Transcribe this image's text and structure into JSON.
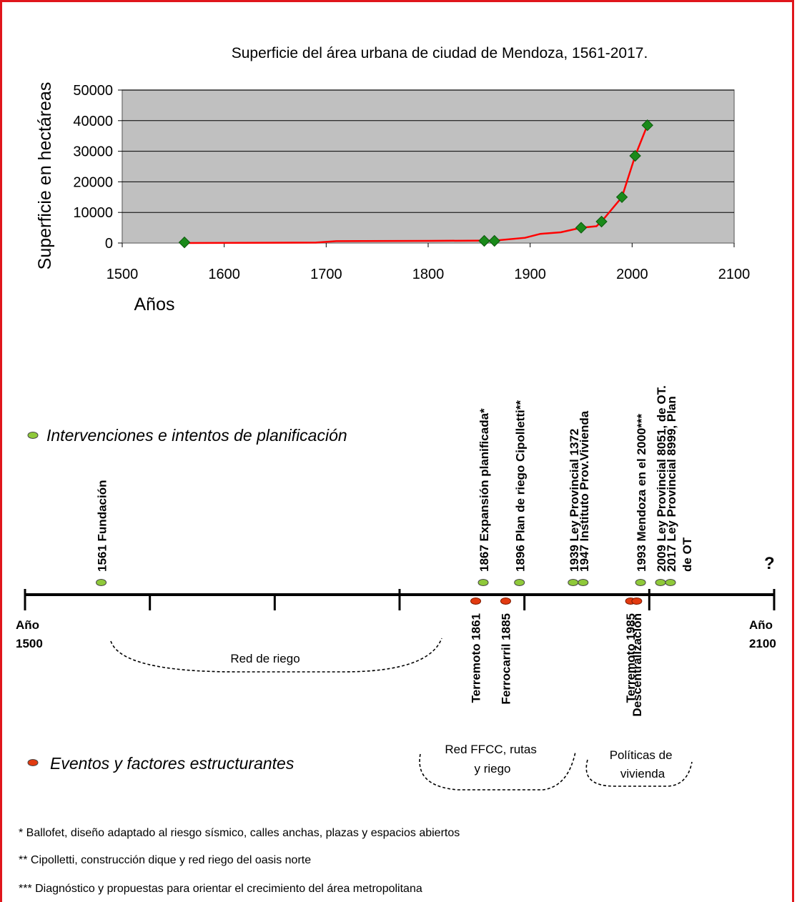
{
  "colors": {
    "frame": "#e0161c",
    "plot_bg": "#c0c0c0",
    "line": "#ff0000",
    "marker": "#1a8a1a",
    "intervention_dot": "#8fc93a",
    "event_dot": "#e23a10"
  },
  "chart_data": {
    "type": "line",
    "title": "Superficie del área urbana de ciudad de Mendoza, 1561-2017.",
    "xlabel": "Años",
    "ylabel": "Superficie en hectáreas",
    "xlim": [
      1500,
      2100
    ],
    "ylim": [
      0,
      50000
    ],
    "x_ticks": [
      "1500",
      "1600",
      "1700",
      "1800",
      "1900",
      "2000",
      "2100"
    ],
    "y_ticks": [
      "0",
      "10000",
      "20000",
      "30000",
      "40000",
      "50000"
    ],
    "grid": true,
    "series": [
      {
        "line_points": [
          [
            1561,
            0
          ],
          [
            1690,
            150
          ],
          [
            1710,
            600
          ],
          [
            1800,
            700
          ],
          [
            1855,
            800
          ],
          [
            1865,
            800
          ],
          [
            1895,
            1700
          ],
          [
            1910,
            3000
          ],
          [
            1930,
            3500
          ],
          [
            1950,
            5000
          ],
          [
            1965,
            5500
          ],
          [
            1970,
            7000
          ],
          [
            1990,
            15000
          ],
          [
            2003,
            28500
          ],
          [
            2015,
            38500
          ]
        ],
        "markers": [
          [
            1561,
            200
          ],
          [
            1855,
            700
          ],
          [
            1865,
            700
          ],
          [
            1950,
            5000
          ],
          [
            1970,
            7000
          ],
          [
            1990,
            15000
          ],
          [
            2003,
            28500
          ],
          [
            2015,
            38500
          ]
        ]
      }
    ]
  },
  "timeline": {
    "start_year": 1500,
    "end_year": 2100,
    "start_label": [
      "Año",
      "1500"
    ],
    "end_label": [
      "Año",
      "2100"
    ],
    "question_mark": "?",
    "interventions": [
      {
        "year": 1561,
        "label": "1561 Fundación"
      },
      {
        "year": 1867,
        "label": "1867 Expansión planificada*"
      },
      {
        "year": 1896,
        "label": "1896 Plan de riego  Cipolletti**"
      },
      {
        "year": 1939,
        "label": "1939 Ley Provincial 1372"
      },
      {
        "year": 1947,
        "label": "1947  Instituto Prov.Vivienda"
      },
      {
        "year": 1993,
        "label": "1993  Mendoza en el 2000***"
      },
      {
        "year": 2009,
        "label": "2009 Ley Provincial 8051, de OT."
      },
      {
        "year": 2017,
        "label": "2017 Ley Provincial 8999, Plan",
        "label2": "de OT"
      }
    ],
    "events": [
      {
        "year": 1861,
        "label": "Terremoto 1861"
      },
      {
        "year": 1885,
        "label": "Ferrocarril 1885"
      },
      {
        "year": 1985,
        "label": "Terremoto 1985"
      },
      {
        "year": 1990,
        "label": "Descentralización"
      }
    ],
    "periods": [
      {
        "label": "Red de riego"
      },
      {
        "label": "Red FFCC, rutas",
        "label2": "y riego"
      },
      {
        "label": "Políticas de",
        "label2": "vivienda"
      }
    ]
  },
  "legend": {
    "interventions": "Intervenciones e intentos de planificación",
    "events": "Eventos y factores estructurantes"
  },
  "footnotes": [
    "* Ballofet, diseño adaptado al riesgo sísmico, calles anchas, plazas y espacios abiertos",
    "** Cipolletti, construcción dique y red riego del oasis norte",
    "*** Diagnóstico y propuestas para orientar el crecimiento del área metropolitana"
  ]
}
